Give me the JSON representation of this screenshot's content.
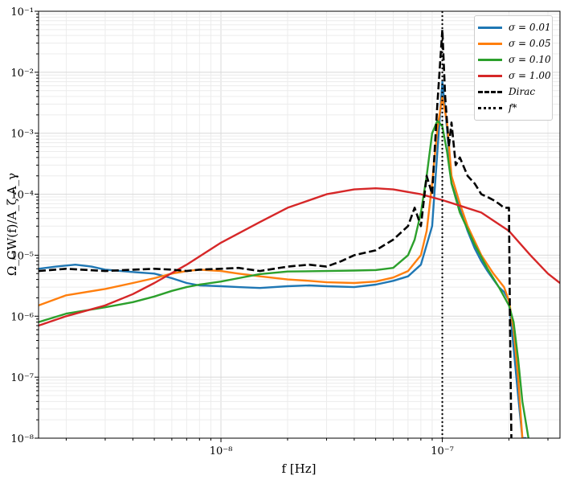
{
  "chart_data": {
    "type": "line",
    "xlabel": "f [Hz]",
    "ylabel": "Ω_GW(f)/A_ζ A_γ",
    "xscale": "log",
    "yscale": "log",
    "xlim": [
      1.5e-09,
      3.4e-07
    ],
    "ylim": [
      1e-08,
      0.1
    ],
    "grid": true,
    "legend_position": "top-right",
    "x_ticks": [
      {
        "value": 1e-08,
        "label": "10⁻⁸"
      },
      {
        "value": 1e-07,
        "label": "10⁻⁷"
      }
    ],
    "y_ticks": [
      {
        "value": 1e-08,
        "label": "10⁻⁸"
      },
      {
        "value": 1e-07,
        "label": "10⁻⁷"
      },
      {
        "value": 1e-06,
        "label": "10⁻⁶"
      },
      {
        "value": 1e-05,
        "label": "10⁻⁵"
      },
      {
        "value": 0.0001,
        "label": "10⁻⁴"
      },
      {
        "value": 0.001,
        "label": "10⁻³"
      },
      {
        "value": 0.01,
        "label": "10⁻²"
      },
      {
        "value": 0.1,
        "label": "10⁻¹"
      }
    ],
    "series": [
      {
        "name": "σ = 0.01",
        "color": "#1f77b4",
        "style": "solid",
        "x": [
          1.5e-09,
          1.8e-09,
          2.2e-09,
          2.6e-09,
          3e-09,
          4e-09,
          5e-09,
          6e-09,
          7e-09,
          8e-09,
          1e-08,
          1.2e-08,
          1.5e-08,
          2e-08,
          2.5e-08,
          3e-08,
          4e-08,
          5e-08,
          6e-08,
          7e-08,
          8e-08,
          9e-08,
          9.5e-08,
          1e-07,
          1.05e-07,
          1.1e-07,
          1.2e-07,
          1.3e-07,
          1.4e-07,
          1.5e-07,
          1.6e-07,
          1.7e-07,
          1.8e-07,
          1.9e-07,
          2e-07,
          2.1e-07,
          2.2e-07,
          2.3e-07,
          2.4e-07
        ],
        "y": [
          6e-06,
          6.5e-06,
          7e-06,
          6.5e-06,
          5.8e-06,
          5.3e-06,
          5e-06,
          4.2e-06,
          3.5e-06,
          3.2e-06,
          3.1e-06,
          3e-06,
          2.9e-06,
          3.1e-06,
          3.2e-06,
          3.1e-06,
          3e-06,
          3.3e-06,
          3.8e-06,
          4.5e-06,
          7e-06,
          3e-05,
          0.0005,
          0.007,
          0.0012,
          0.00015,
          6e-05,
          2.5e-05,
          1.3e-05,
          8e-06,
          5.5e-06,
          4e-06,
          3e-06,
          2.5e-06,
          1.8e-06,
          3e-07,
          5e-08,
          1e-08,
          1e-08
        ]
      },
      {
        "name": "σ = 0.05",
        "color": "#ff7f0e",
        "style": "solid",
        "x": [
          1.5e-09,
          2e-09,
          3e-09,
          4e-09,
          5e-09,
          6e-09,
          7e-09,
          8e-09,
          1e-08,
          1.2e-08,
          1.5e-08,
          2e-08,
          2.5e-08,
          3e-08,
          4e-08,
          5e-08,
          6e-08,
          7e-08,
          8e-08,
          8.5e-08,
          9e-08,
          9.5e-08,
          1e-07,
          1.05e-07,
          1.1e-07,
          1.2e-07,
          1.3e-07,
          1.5e-07,
          1.7e-07,
          1.9e-07,
          2e-07,
          2.1e-07,
          2.2e-07,
          2.3e-07
        ],
        "y": [
          1.5e-06,
          2.2e-06,
          2.8e-06,
          3.5e-06,
          4.2e-06,
          5e-06,
          5.5e-06,
          5.8e-06,
          5.5e-06,
          5e-06,
          4.5e-06,
          4e-06,
          3.8e-06,
          3.6e-06,
          3.5e-06,
          3.7e-06,
          4.3e-06,
          5.5e-06,
          1e-05,
          2.5e-05,
          0.00015,
          0.0012,
          0.004,
          0.0015,
          0.0002,
          7e-05,
          3e-05,
          1e-05,
          5e-06,
          3e-06,
          1.8e-06,
          6e-07,
          1e-07,
          1e-08
        ]
      },
      {
        "name": "σ = 0.10",
        "color": "#2ca02c",
        "style": "solid",
        "x": [
          1.5e-09,
          2e-09,
          3e-09,
          4e-09,
          5e-09,
          6e-09,
          7e-09,
          8e-09,
          1e-08,
          1.2e-08,
          1.5e-08,
          2e-08,
          3e-08,
          4e-08,
          5e-08,
          6e-08,
          7e-08,
          7.5e-08,
          8e-08,
          8.5e-08,
          9e-08,
          9.5e-08,
          1e-07,
          1.05e-07,
          1.1e-07,
          1.2e-07,
          1.4e-07,
          1.6e-07,
          1.8e-07,
          2e-07,
          2.1e-07,
          2.2e-07,
          2.3e-07,
          2.45e-07
        ],
        "y": [
          8e-07,
          1.1e-06,
          1.4e-06,
          1.7e-06,
          2.1e-06,
          2.6e-06,
          3e-06,
          3.3e-06,
          3.7e-06,
          4.2e-06,
          4.9e-06,
          5.4e-06,
          5.5e-06,
          5.6e-06,
          5.7e-06,
          6.2e-06,
          1e-05,
          1.8e-05,
          5e-05,
          0.0002,
          0.001,
          0.0016,
          0.0013,
          0.0005,
          0.00015,
          5e-05,
          1.5e-05,
          6e-06,
          3e-06,
          1.5e-06,
          8e-07,
          2e-07,
          4e-08,
          1e-08
        ]
      },
      {
        "name": "σ = 1.00",
        "color": "#d62728",
        "style": "solid",
        "x": [
          1.5e-09,
          2e-09,
          3e-09,
          4e-09,
          5e-09,
          7e-09,
          1e-08,
          1.5e-08,
          2e-08,
          3e-08,
          4e-08,
          5e-08,
          6e-08,
          8e-08,
          1e-07,
          1.2e-07,
          1.5e-07,
          2e-07,
          2.5e-07,
          3e-07,
          3.4e-07
        ],
        "y": [
          7e-07,
          1e-06,
          1.5e-06,
          2.3e-06,
          3.5e-06,
          7e-06,
          1.6e-05,
          3.5e-05,
          6e-05,
          0.0001,
          0.00012,
          0.000125,
          0.00012,
          0.0001,
          8e-05,
          6.5e-05,
          5e-05,
          2.5e-05,
          1e-05,
          5e-06,
          3.5e-06
        ]
      },
      {
        "name": "Dirac",
        "color": "#000000",
        "style": "dashed",
        "x": [
          1.5e-09,
          2e-09,
          3e-09,
          4e-09,
          5e-09,
          6e-09,
          7e-09,
          8e-09,
          1e-08,
          1.2e-08,
          1.5e-08,
          2e-08,
          2.5e-08,
          3e-08,
          3.5e-08,
          4e-08,
          5e-08,
          6e-08,
          7e-08,
          7.5e-08,
          8e-08,
          8.5e-08,
          9e-08,
          9.5e-08,
          1e-07,
          1.03e-07,
          1.07e-07,
          1.1e-07,
          1.15e-07,
          1.2e-07,
          1.3e-07,
          1.4e-07,
          1.5e-07,
          1.6e-07,
          1.7e-07,
          1.8e-07,
          1.9e-07,
          2e-07,
          2.02e-07,
          2.05e-07
        ],
        "y": [
          5.5e-06,
          6e-06,
          5.5e-06,
          5.8e-06,
          6e-06,
          5.8e-06,
          5.5e-06,
          5.8e-06,
          6e-06,
          6.2e-06,
          5.5e-06,
          6.5e-06,
          7e-06,
          6.5e-06,
          8e-06,
          1e-05,
          1.2e-05,
          1.8e-05,
          3e-05,
          6e-05,
          3e-05,
          0.0002,
          0.0001,
          0.003,
          0.05,
          0.004,
          0.0006,
          0.0015,
          0.0003,
          0.0004,
          0.0002,
          0.00015,
          0.0001,
          9e-05,
          8e-05,
          7e-05,
          6e-05,
          6e-05,
          1e-06,
          1e-08
        ]
      }
    ],
    "vlines": [
      {
        "name": "f_*",
        "x": 1e-07,
        "color": "#000000",
        "style": "dotted"
      }
    ]
  },
  "legend": [
    {
      "label": "σ = 0.01",
      "color": "#1f77b4",
      "style": "solid"
    },
    {
      "label": "σ = 0.05",
      "color": "#ff7f0e",
      "style": "solid"
    },
    {
      "label": "σ = 0.10",
      "color": "#2ca02c",
      "style": "solid"
    },
    {
      "label": "σ = 1.00",
      "color": "#d62728",
      "style": "solid"
    },
    {
      "label": "Dirac",
      "color": "#000000",
      "style": "dashed"
    },
    {
      "label": "f*",
      "color": "#000000",
      "style": "dotted"
    }
  ]
}
